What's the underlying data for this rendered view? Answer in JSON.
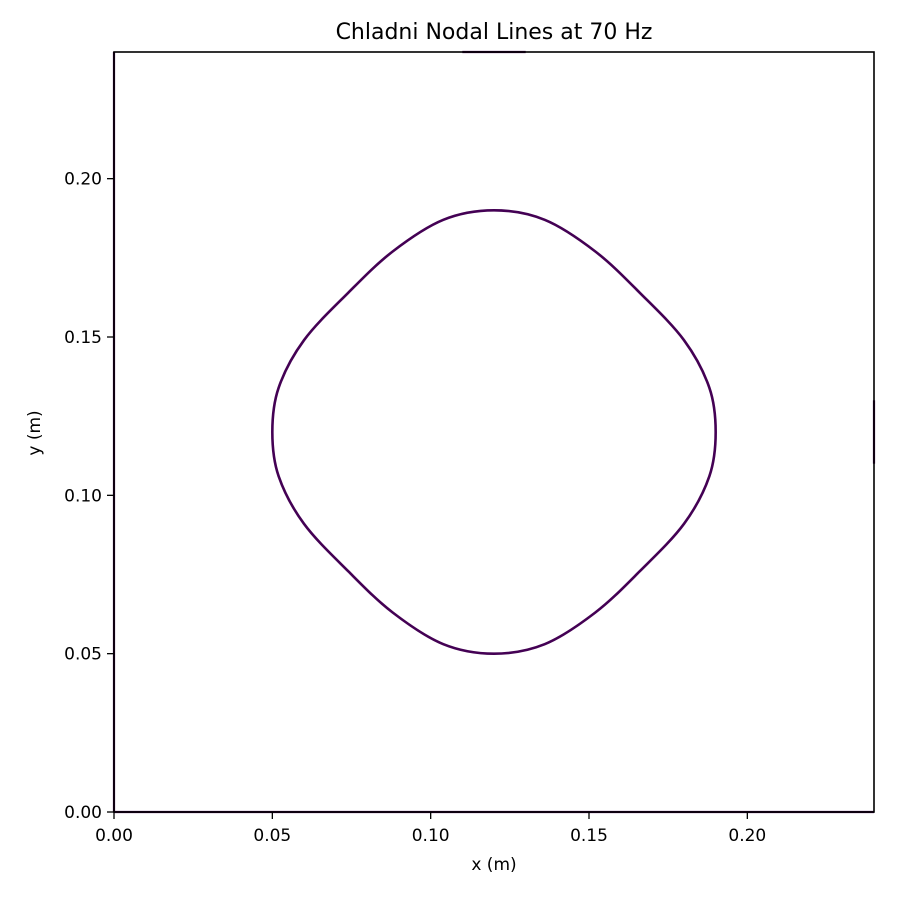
{
  "chart_data": {
    "type": "contour",
    "title": "Chladni Nodal Lines at 70 Hz",
    "xlabel": "x (m)",
    "ylabel": "y (m)",
    "xlim": [
      0.0,
      0.24
    ],
    "ylim": [
      0.0,
      0.24
    ],
    "x_ticks": [
      0.0,
      0.05,
      0.1,
      0.15,
      0.2
    ],
    "x_tick_labels": [
      "0.00",
      "0.05",
      "0.10",
      "0.15",
      "0.20"
    ],
    "y_ticks": [
      0.0,
      0.05,
      0.1,
      0.15,
      0.2
    ],
    "y_tick_labels": [
      "0.00",
      "0.05",
      "0.10",
      "0.15",
      "0.20"
    ],
    "grid": false,
    "line_color": "#440154",
    "nodal_curves": [
      {
        "closed": true,
        "points": [
          [
            0.19,
            0.12
          ],
          [
            0.188,
            0.134
          ],
          [
            0.18,
            0.149
          ],
          [
            0.166,
            0.164
          ],
          [
            0.152,
            0.177
          ],
          [
            0.136,
            0.187
          ],
          [
            0.12,
            0.19
          ],
          [
            0.104,
            0.187
          ],
          [
            0.088,
            0.177
          ],
          [
            0.074,
            0.164
          ],
          [
            0.06,
            0.149
          ],
          [
            0.052,
            0.134
          ],
          [
            0.05,
            0.12
          ],
          [
            0.052,
            0.106
          ],
          [
            0.06,
            0.091
          ],
          [
            0.074,
            0.076
          ],
          [
            0.088,
            0.063
          ],
          [
            0.104,
            0.053
          ],
          [
            0.12,
            0.05
          ],
          [
            0.136,
            0.053
          ],
          [
            0.152,
            0.063
          ],
          [
            0.166,
            0.076
          ],
          [
            0.18,
            0.091
          ],
          [
            0.188,
            0.106
          ]
        ]
      },
      {
        "closed": false,
        "points": [
          [
            0.0,
            0.0
          ],
          [
            0.0,
            0.24
          ]
        ]
      },
      {
        "closed": false,
        "points": [
          [
            0.0,
            0.0
          ],
          [
            0.24,
            0.0
          ]
        ]
      },
      {
        "closed": false,
        "points": [
          [
            0.11,
            0.24
          ],
          [
            0.13,
            0.24
          ]
        ]
      },
      {
        "closed": false,
        "points": [
          [
            0.24,
            0.11
          ],
          [
            0.24,
            0.13
          ]
        ]
      }
    ]
  }
}
